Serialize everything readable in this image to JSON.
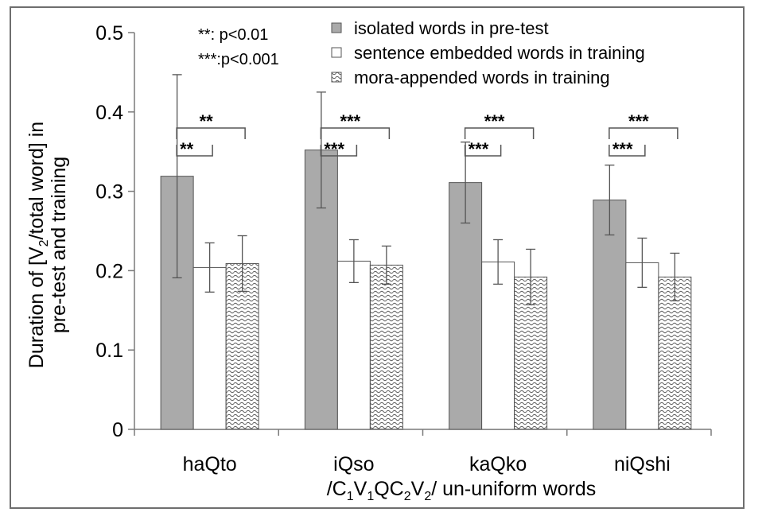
{
  "chart_data": {
    "type": "bar",
    "ylabel_line1": "Duration of [V",
    "ylabel_sub": "2",
    "ylabel_line1_end": "/total word] in",
    "ylabel_line2": "pre-test and training",
    "xlabel_parts": [
      {
        "t": "/C",
        "sub": false
      },
      {
        "t": "1",
        "sub": true
      },
      {
        "t": "V",
        "sub": false
      },
      {
        "t": "1",
        "sub": true
      },
      {
        "t": "QC",
        "sub": false
      },
      {
        "t": "2",
        "sub": true
      },
      {
        "t": "V",
        "sub": false
      },
      {
        "t": "2",
        "sub": true
      },
      {
        "t": "/ un-uniform words",
        "sub": false
      }
    ],
    "ylim": [
      0,
      0.5
    ],
    "yticks": [
      "0",
      "0.1",
      "0.2",
      "0.3",
      "0.4",
      "0.5"
    ],
    "categories": [
      "haQto",
      "iQso",
      "kaQko",
      "niQshi"
    ],
    "series": [
      {
        "name": "isolated words in pre-test",
        "color": "#aaaaaa",
        "pattern": "solid",
        "values": [
          0.319,
          0.352,
          0.311,
          0.289
        ],
        "err": [
          0.128,
          0.073,
          0.051,
          0.044
        ]
      },
      {
        "name": "sentence embedded words in training",
        "color": "#ffffff",
        "pattern": "none",
        "values": [
          0.204,
          0.212,
          0.211,
          0.21
        ],
        "err": [
          0.031,
          0.027,
          0.028,
          0.031
        ]
      },
      {
        "name": "mora-appended words in training",
        "color": "#ffffff",
        "pattern": "wavy",
        "values": [
          0.209,
          0.207,
          0.192,
          0.192
        ],
        "err": [
          0.035,
          0.024,
          0.035,
          0.03
        ]
      }
    ],
    "significance": [
      {
        "category": 0,
        "short": "**",
        "long": "**"
      },
      {
        "category": 1,
        "short": "***",
        "long": "***"
      },
      {
        "category": 2,
        "short": "***",
        "long": "***"
      },
      {
        "category": 3,
        "short": "***",
        "long": "***"
      }
    ],
    "notes": [
      "**:  p<0.01",
      "***:p<0.001"
    ],
    "grid": false,
    "legend_position": "top-right"
  }
}
